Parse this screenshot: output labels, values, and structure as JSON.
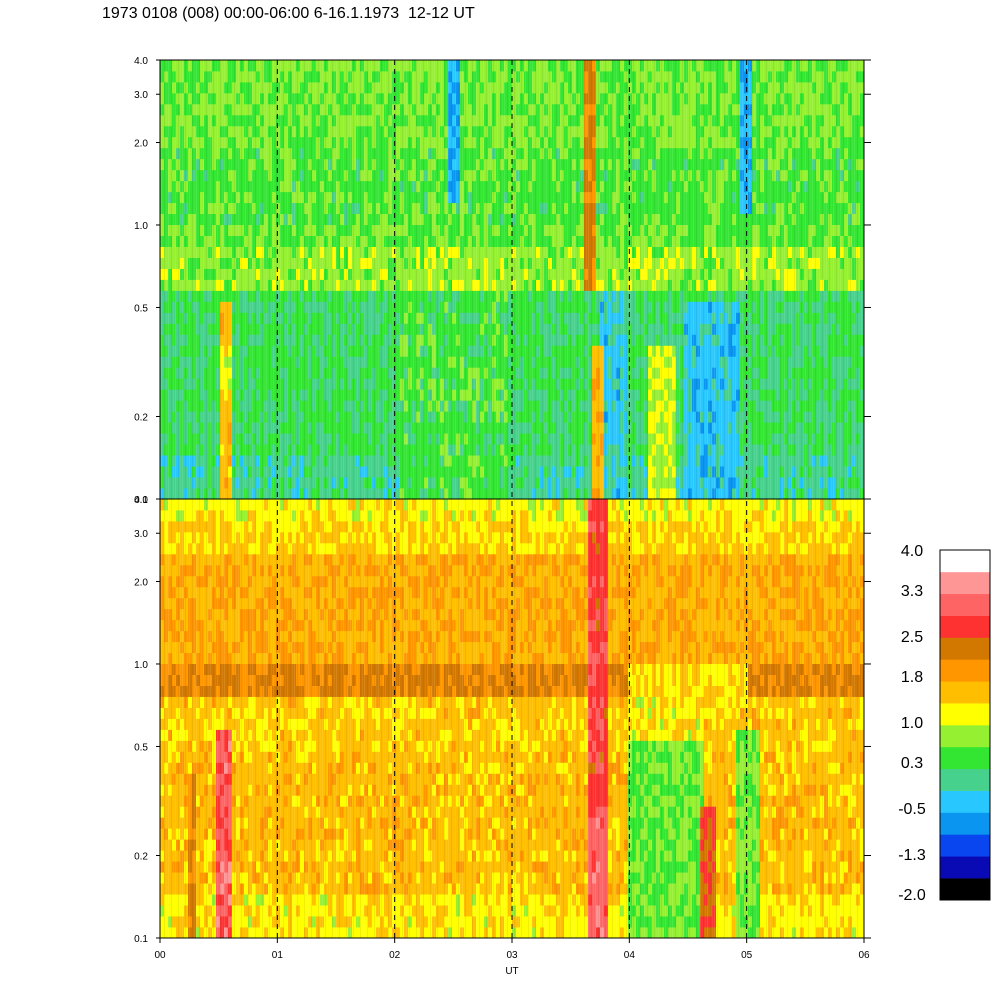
{
  "title": "1973 0108 (008) 00:00-06:00 6-16.1.1973  12-12 UT",
  "chart_data": {
    "type": "heatmap",
    "xlabel": "UT",
    "x_tick_labels": [
      "00",
      "01",
      "02",
      "03",
      "04",
      "05",
      "06"
    ],
    "x_range_hours": [
      0,
      6
    ],
    "dashed_vertical_lines_hours": [
      1,
      2,
      3,
      4,
      5
    ],
    "y_scale": "log",
    "y_range": [
      0.1,
      4.0
    ],
    "y_tick_values": [
      0.1,
      0.2,
      0.5,
      1.0,
      2.0,
      3.0,
      4.0
    ],
    "y_tick_labels": [
      "0.1",
      "0.2",
      "0.5",
      "1.0",
      "2.0",
      "3.0",
      "4.0"
    ],
    "panels": [
      {
        "name": "upper",
        "levels": [
          [
            0.2,
            0.62,
            0.42,
            0.56,
            0.62,
            0.52,
            0.58,
            0.7,
            0.58,
            0.62,
            0.52,
            0.56,
            0.66,
            0.66,
            0.56,
            0.74,
            0.7,
            0.66
          ],
          [
            0.18,
            0.6,
            0.42,
            0.56,
            0.62,
            0.52,
            0.58,
            0.62,
            0.58,
            0.62,
            0.52,
            0.56,
            0.66,
            0.64,
            0.56,
            0.72,
            0.7,
            0.64
          ],
          [
            0.16,
            0.6,
            0.4,
            0.56,
            0.62,
            0.5,
            0.58,
            0.62,
            0.56,
            0.62,
            0.52,
            0.58,
            0.66,
            0.62,
            0.56,
            0.7,
            0.7,
            0.64
          ],
          [
            0.14,
            0.6,
            0.4,
            0.58,
            0.62,
            0.5,
            0.56,
            0.6,
            0.56,
            0.62,
            0.54,
            0.58,
            0.66,
            0.62,
            0.58,
            0.68,
            0.7,
            0.64
          ],
          [
            0.12,
            0.58,
            0.4,
            0.58,
            0.6,
            0.5,
            0.56,
            0.56,
            0.56,
            0.62,
            0.54,
            0.58,
            0.64,
            0.6,
            0.58,
            0.66,
            0.7,
            0.62
          ],
          [
            0.1,
            0.58,
            0.4,
            0.58,
            0.6,
            0.52,
            0.56,
            0.52,
            0.56,
            0.62,
            0.54,
            0.58,
            0.64,
            0.6,
            0.58,
            0.64,
            0.68,
            0.62
          ]
        ],
        "description_unused": ""
      },
      {
        "name": "lower"
      }
    ],
    "colorbar": {
      "tick_labels": [
        "4.0",
        "3.3",
        "2.5",
        "1.8",
        "1.0",
        "0.3",
        "-0.5",
        "-1.3",
        "-2.0"
      ],
      "range": [
        -2.0,
        4.0
      ],
      "colors": [
        "#000000",
        "#0a0ab4",
        "#0a46f0",
        "#0a96f0",
        "#28c8ff",
        "#46d28c",
        "#32e632",
        "#96f032",
        "#ffff00",
        "#ffbe00",
        "#ff9600",
        "#d27800",
        "#ff3232",
        "#ff6464",
        "#ff9696",
        "#ffffff"
      ]
    }
  }
}
